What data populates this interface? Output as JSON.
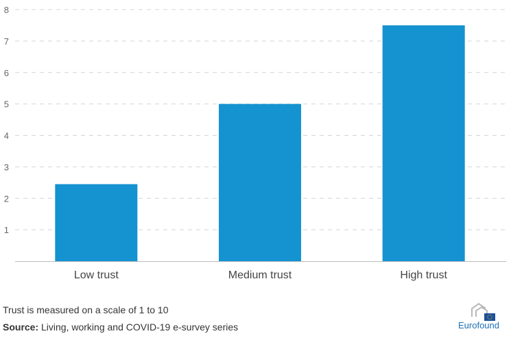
{
  "chart_data": {
    "type": "bar",
    "categories": [
      "Low trust",
      "Medium trust",
      "High trust"
    ],
    "values": [
      2.45,
      5.0,
      7.5
    ],
    "title": "",
    "xlabel": "",
    "ylabel": "",
    "ylim": [
      0,
      8
    ],
    "yticks": [
      "1",
      "2",
      "3",
      "4",
      "5",
      "6",
      "7",
      "8"
    ],
    "grid": true,
    "legend": "none",
    "bar_color": "#1592d0",
    "grid_color": "#d4d4d4"
  },
  "footer": {
    "note": "Trust is measured on a scale of 1 to 10",
    "source_label": "Source:",
    "source_text": " Living, working and COVID-19 e-survey series",
    "logo_text": "Eurofound"
  }
}
